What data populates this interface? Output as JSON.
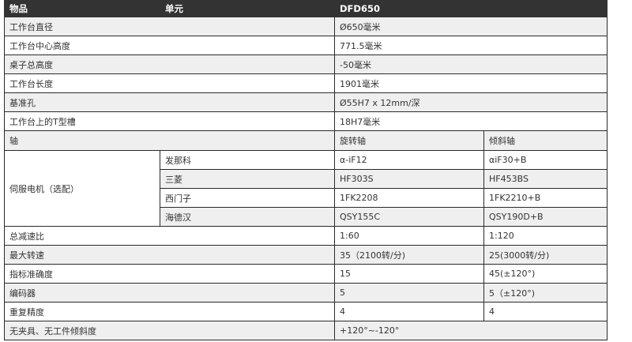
{
  "header": [
    "物品",
    "单元",
    "DFD650"
  ],
  "single_rows": [
    {
      "label": "工作台直径",
      "value": "Ø650毫米"
    },
    {
      "label": "工作台中心高度",
      "value": "771.5毫米"
    },
    {
      "label": "桌子总高度",
      "value": "-50毫米"
    },
    {
      "label": "工作台长度",
      "value": "1901毫米"
    },
    {
      "label": "基准孔",
      "value": "Ø55H7 x 12mm/深"
    },
    {
      "label": "工作台上的T型槽",
      "value": "18H7毫米"
    }
  ],
  "axis_row": {
    "label": "轴",
    "rotary": "旋转轴",
    "tilt": "倾斜轴"
  },
  "servo": {
    "label": "伺服电机（选配）",
    "brands": [
      {
        "name": "发那科",
        "rotary": "α-iF12",
        "tilt": "αiF30+B"
      },
      {
        "name": "三菱",
        "rotary": "HF303S",
        "tilt": "HF453BS"
      },
      {
        "name": "西门子",
        "rotary": "1FK2208",
        "tilt": "1FK2210+B"
      },
      {
        "name": "海德汉",
        "rotary": "QSY155C",
        "tilt": "QSY190D+B"
      }
    ]
  },
  "dual_rows": [
    {
      "label": "总减速比",
      "rotary": "1:60",
      "tilt": "1:120"
    },
    {
      "label": "最大转速",
      "rotary": "35（2100转/分)",
      "tilt": "25(3000转/分)"
    },
    {
      "label": "指标准确度",
      "rotary": "15",
      "tilt": "45(±120°)"
    },
    {
      "label": "编码器",
      "rotary": "5",
      "tilt": "5（±120°)"
    },
    {
      "label": "重复精度",
      "rotary": "4",
      "tilt": "4"
    }
  ],
  "last_row": {
    "label": "无夹具、无工件倾斜度",
    "value": "+120°~-120°"
  }
}
